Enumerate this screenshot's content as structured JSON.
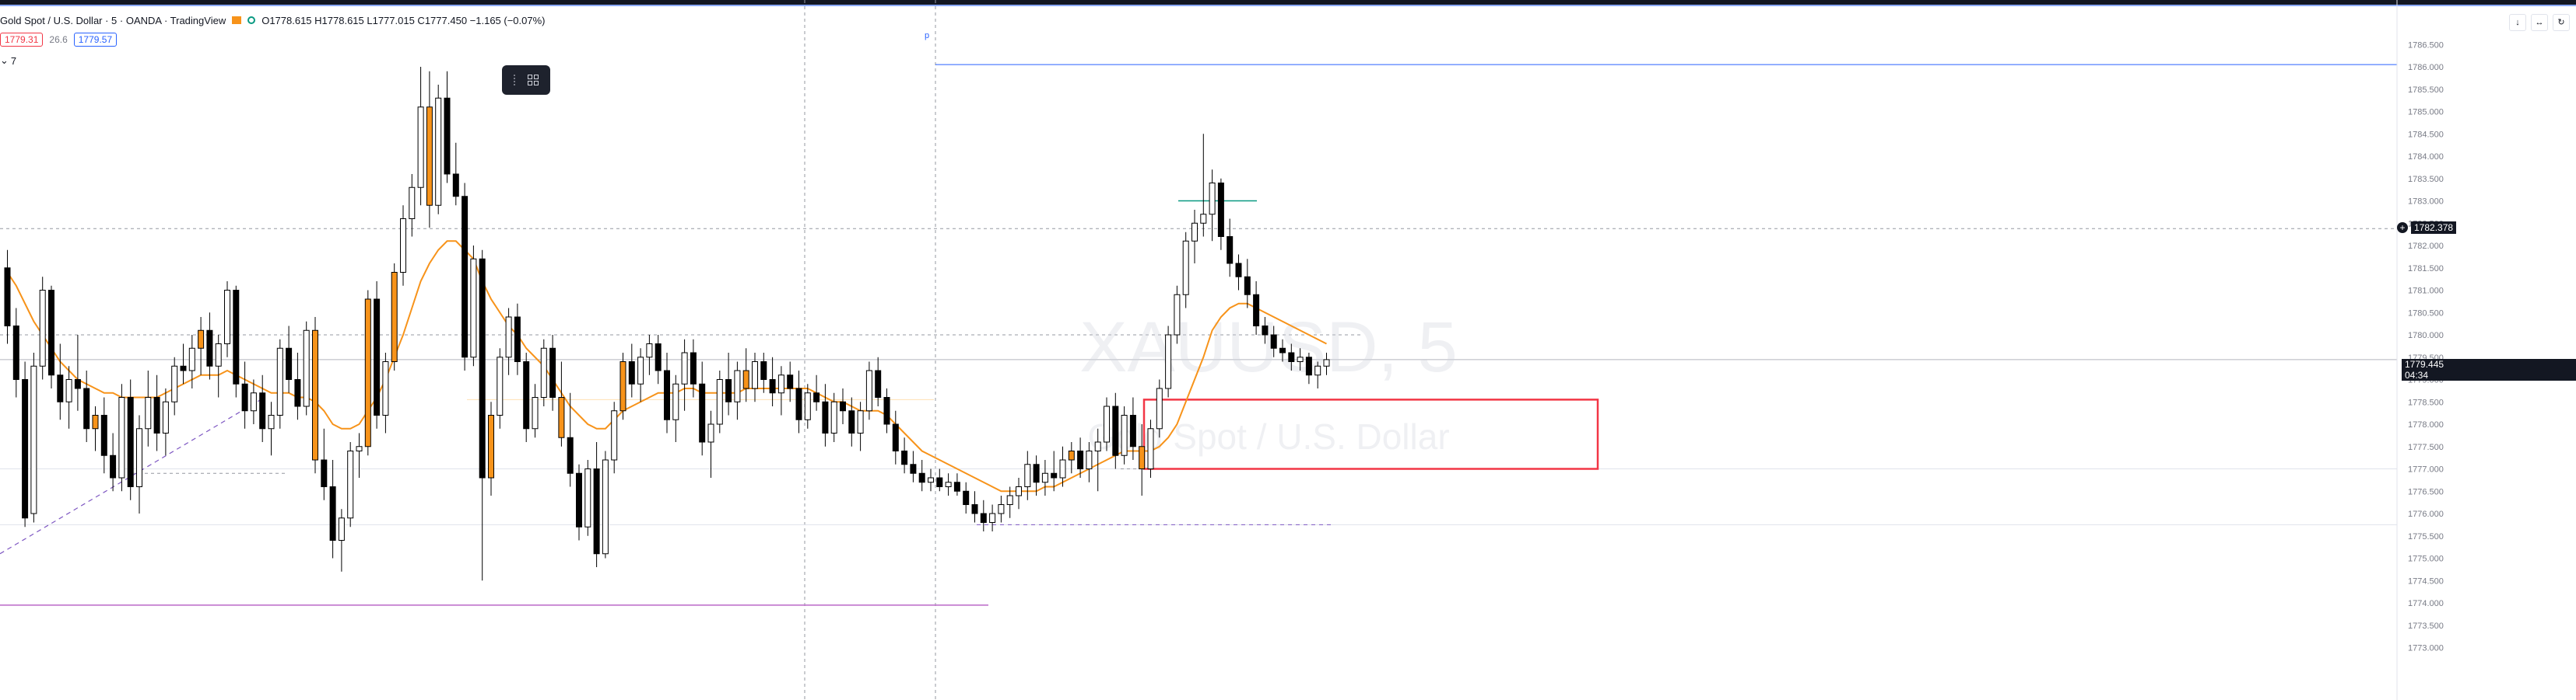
{
  "header": {
    "symbol": "Gold Spot / U.S. Dollar · 5 · OANDA · TradingView",
    "ohlc": "O1778.615 H1778.615 L1777.015 C1777.450 −1.165 (−0.07%)",
    "sell_price": "1779.31",
    "spread": "26.6",
    "buy_price": "1779.57",
    "indicator_toggle": "7"
  },
  "watermark": {
    "ticker": "XAUUSD, 5",
    "name": "Gold Spot / U.S. Dollar"
  },
  "price_axis": {
    "ticks": [
      "1786.500",
      "1786.000",
      "1785.500",
      "1785.000",
      "1784.500",
      "1784.000",
      "1783.500",
      "1783.000",
      "1782.500",
      "1782.000",
      "1781.500",
      "1781.000",
      "1780.500",
      "1780.000",
      "1779.500",
      "1779.000",
      "1778.500",
      "1778.000",
      "1777.500",
      "1777.000",
      "1776.500",
      "1776.000",
      "1775.500",
      "1775.000",
      "1774.500",
      "1774.000",
      "1773.500",
      "1773.000"
    ],
    "line_price_label": "1782.378",
    "current_price_label": "1779.445",
    "countdown_label": "04:34"
  },
  "toolbar_icons": [
    "download-icon",
    "resize-icon",
    "refresh-icon"
  ],
  "colors": {
    "up": "#ffffff",
    "down": "#000000",
    "ma": "#f7931a",
    "candle_stroke": "#000000",
    "highlight_candle": "#f7931a",
    "zone": "#f23645",
    "guide_line": "#2962ff",
    "purple_line": "#ba68c8",
    "green_line": "#089981"
  },
  "chart_data": {
    "type": "candlestick",
    "title": "Gold Spot / U.S. Dollar · 5 · OANDA · TradingView",
    "timeframe": "5",
    "ylim": [
      1772.8,
      1786.8
    ],
    "last_close": 1779.445,
    "levels": {
      "horizontal_line": 1782.378,
      "upper_guide": 1786.05,
      "purple_line": 1773.95,
      "green_tick": 1783.0
    },
    "zone": {
      "top": 1778.55,
      "bottom": 1777.0
    },
    "candles": [
      [
        1781.5,
        1781.9,
        1779.8,
        1780.2
      ],
      [
        1780.2,
        1780.6,
        1778.6,
        1779.0
      ],
      [
        1779.0,
        1779.4,
        1775.7,
        1775.9
      ],
      [
        1776.0,
        1779.6,
        1775.8,
        1779.3
      ],
      [
        1779.3,
        1781.3,
        1779.0,
        1781.0
      ],
      [
        1781.0,
        1781.1,
        1778.8,
        1779.1
      ],
      [
        1779.1,
        1779.8,
        1778.1,
        1778.5
      ],
      [
        1778.5,
        1779.3,
        1777.9,
        1779.0
      ],
      [
        1779.0,
        1780.0,
        1778.3,
        1778.8
      ],
      [
        1778.8,
        1779.2,
        1777.6,
        1777.9
      ],
      [
        1777.9,
        1778.4,
        1777.4,
        1778.2
      ],
      [
        1778.2,
        1778.6,
        1776.9,
        1777.3
      ],
      [
        1777.3,
        1777.8,
        1776.5,
        1776.8
      ],
      [
        1776.8,
        1778.9,
        1776.5,
        1778.6
      ],
      [
        1778.6,
        1779.0,
        1776.3,
        1776.6
      ],
      [
        1776.6,
        1778.2,
        1776.0,
        1777.9
      ],
      [
        1777.9,
        1779.2,
        1777.5,
        1778.6
      ],
      [
        1778.6,
        1779.1,
        1777.4,
        1777.8
      ],
      [
        1777.8,
        1778.8,
        1777.3,
        1778.5
      ],
      [
        1778.5,
        1779.5,
        1778.2,
        1779.3
      ],
      [
        1779.3,
        1779.8,
        1778.9,
        1779.2
      ],
      [
        1779.2,
        1780.0,
        1778.8,
        1779.7
      ],
      [
        1779.7,
        1780.4,
        1779.1,
        1780.1
      ],
      [
        1780.1,
        1780.5,
        1779.0,
        1779.3
      ],
      [
        1779.3,
        1780.0,
        1778.6,
        1779.8
      ],
      [
        1779.8,
        1781.2,
        1779.5,
        1781.0
      ],
      [
        1781.0,
        1781.1,
        1778.6,
        1778.9
      ],
      [
        1778.9,
        1779.4,
        1777.9,
        1778.3
      ],
      [
        1778.3,
        1779.0,
        1778.0,
        1778.7
      ],
      [
        1778.7,
        1779.1,
        1777.6,
        1777.9
      ],
      [
        1777.9,
        1778.5,
        1777.3,
        1778.2
      ],
      [
        1778.2,
        1779.9,
        1777.9,
        1779.7
      ],
      [
        1779.7,
        1780.2,
        1778.7,
        1779.0
      ],
      [
        1779.0,
        1779.6,
        1778.1,
        1778.4
      ],
      [
        1778.4,
        1780.3,
        1778.2,
        1780.1
      ],
      [
        1780.1,
        1780.4,
        1776.9,
        1777.2
      ],
      [
        1777.2,
        1777.9,
        1776.3,
        1776.6
      ],
      [
        1776.6,
        1777.2,
        1775.0,
        1775.4
      ],
      [
        1775.4,
        1776.1,
        1774.7,
        1775.9
      ],
      [
        1775.9,
        1777.6,
        1775.7,
        1777.4
      ],
      [
        1777.4,
        1777.8,
        1776.8,
        1777.5
      ],
      [
        1777.5,
        1781.0,
        1777.3,
        1780.8
      ],
      [
        1780.8,
        1781.2,
        1777.9,
        1778.2
      ],
      [
        1778.2,
        1779.6,
        1777.8,
        1779.4
      ],
      [
        1779.4,
        1781.6,
        1779.2,
        1781.4
      ],
      [
        1781.4,
        1782.9,
        1781.1,
        1782.6
      ],
      [
        1782.6,
        1783.6,
        1782.2,
        1783.3
      ],
      [
        1783.3,
        1786.0,
        1782.9,
        1785.1
      ],
      [
        1785.1,
        1785.9,
        1782.4,
        1782.9
      ],
      [
        1782.9,
        1785.6,
        1782.7,
        1785.3
      ],
      [
        1785.3,
        1785.9,
        1783.4,
        1783.6
      ],
      [
        1783.6,
        1784.3,
        1782.9,
        1783.1
      ],
      [
        1783.1,
        1783.4,
        1779.2,
        1779.5
      ],
      [
        1779.5,
        1782.0,
        1779.3,
        1781.7
      ],
      [
        1781.7,
        1781.9,
        1774.5,
        1776.8
      ],
      [
        1776.8,
        1778.5,
        1776.4,
        1778.2
      ],
      [
        1778.2,
        1779.7,
        1777.9,
        1779.5
      ],
      [
        1779.5,
        1780.6,
        1779.1,
        1780.4
      ],
      [
        1780.4,
        1780.7,
        1779.1,
        1779.4
      ],
      [
        1779.4,
        1779.6,
        1777.6,
        1777.9
      ],
      [
        1777.9,
        1778.9,
        1777.7,
        1778.6
      ],
      [
        1778.6,
        1779.9,
        1778.4,
        1779.7
      ],
      [
        1779.7,
        1780.0,
        1778.3,
        1778.6
      ],
      [
        1778.6,
        1779.4,
        1777.5,
        1777.7
      ],
      [
        1777.7,
        1778.7,
        1776.6,
        1776.9
      ],
      [
        1776.9,
        1777.1,
        1775.4,
        1775.7
      ],
      [
        1775.7,
        1777.2,
        1775.5,
        1777.0
      ],
      [
        1777.0,
        1777.6,
        1774.8,
        1775.1
      ],
      [
        1775.1,
        1777.4,
        1775.0,
        1777.2
      ],
      [
        1777.2,
        1778.5,
        1776.9,
        1778.3
      ],
      [
        1778.3,
        1779.6,
        1778.1,
        1779.4
      ],
      [
        1779.4,
        1779.8,
        1778.6,
        1778.9
      ],
      [
        1778.9,
        1779.7,
        1778.5,
        1779.5
      ],
      [
        1779.5,
        1780.0,
        1779.1,
        1779.8
      ],
      [
        1779.8,
        1780.0,
        1778.9,
        1779.2
      ],
      [
        1779.2,
        1779.6,
        1777.8,
        1778.1
      ],
      [
        1778.1,
        1779.1,
        1777.6,
        1778.9
      ],
      [
        1778.9,
        1779.9,
        1778.3,
        1779.6
      ],
      [
        1779.6,
        1779.9,
        1778.6,
        1778.9
      ],
      [
        1778.9,
        1779.4,
        1777.3,
        1777.6
      ],
      [
        1777.6,
        1778.3,
        1776.8,
        1778.0
      ],
      [
        1778.0,
        1779.2,
        1777.8,
        1779.0
      ],
      [
        1779.0,
        1779.6,
        1778.2,
        1778.5
      ],
      [
        1778.5,
        1779.4,
        1778.1,
        1779.2
      ],
      [
        1779.2,
        1779.7,
        1778.5,
        1778.8
      ],
      [
        1778.8,
        1779.6,
        1778.5,
        1779.4
      ],
      [
        1779.4,
        1779.6,
        1778.7,
        1779.0
      ],
      [
        1779.0,
        1779.5,
        1778.4,
        1778.7
      ],
      [
        1778.7,
        1779.3,
        1778.2,
        1779.1
      ],
      [
        1779.1,
        1779.4,
        1778.5,
        1778.8
      ],
      [
        1778.8,
        1779.2,
        1777.8,
        1778.1
      ],
      [
        1778.1,
        1778.9,
        1777.9,
        1778.7
      ],
      [
        1778.7,
        1779.1,
        1778.3,
        1778.5
      ],
      [
        1778.5,
        1778.9,
        1777.5,
        1777.8
      ],
      [
        1777.8,
        1778.7,
        1777.6,
        1778.5
      ],
      [
        1778.5,
        1778.8,
        1778.0,
        1778.3
      ],
      [
        1778.3,
        1778.6,
        1777.5,
        1777.8
      ],
      [
        1777.8,
        1778.5,
        1777.4,
        1778.3
      ],
      [
        1778.3,
        1779.4,
        1778.1,
        1779.2
      ],
      [
        1779.2,
        1779.5,
        1778.4,
        1778.6
      ],
      [
        1778.6,
        1778.8,
        1777.8,
        1778.0
      ],
      [
        1778.0,
        1778.3,
        1777.1,
        1777.4
      ],
      [
        1777.4,
        1777.7,
        1776.9,
        1777.1
      ],
      [
        1777.1,
        1777.4,
        1776.7,
        1776.9
      ],
      [
        1776.9,
        1777.2,
        1776.5,
        1776.7
      ],
      [
        1776.7,
        1777.0,
        1776.5,
        1776.8
      ],
      [
        1776.8,
        1777.0,
        1776.5,
        1776.6
      ],
      [
        1776.6,
        1776.9,
        1776.4,
        1776.7
      ],
      [
        1776.7,
        1776.9,
        1776.4,
        1776.5
      ],
      [
        1776.5,
        1776.7,
        1776.0,
        1776.2
      ],
      [
        1776.2,
        1776.5,
        1775.8,
        1776.0
      ],
      [
        1776.0,
        1776.3,
        1775.6,
        1775.8
      ],
      [
        1775.8,
        1776.2,
        1775.6,
        1776.0
      ],
      [
        1776.0,
        1776.4,
        1775.8,
        1776.2
      ],
      [
        1776.2,
        1776.6,
        1775.9,
        1776.4
      ],
      [
        1776.4,
        1776.8,
        1776.1,
        1776.6
      ],
      [
        1776.6,
        1777.4,
        1776.3,
        1777.1
      ],
      [
        1777.1,
        1777.3,
        1776.4,
        1776.7
      ],
      [
        1776.7,
        1777.2,
        1776.4,
        1776.9
      ],
      [
        1776.9,
        1777.4,
        1776.5,
        1776.8
      ],
      [
        1776.8,
        1777.5,
        1776.6,
        1777.2
      ],
      [
        1777.2,
        1777.6,
        1776.9,
        1777.4
      ],
      [
        1777.4,
        1777.7,
        1776.8,
        1777.0
      ],
      [
        1777.0,
        1777.6,
        1776.7,
        1777.4
      ],
      [
        1777.4,
        1777.9,
        1776.5,
        1777.6
      ],
      [
        1777.6,
        1778.6,
        1777.4,
        1778.4
      ],
      [
        1778.4,
        1778.7,
        1777.0,
        1777.3
      ],
      [
        1777.3,
        1778.4,
        1777.1,
        1778.2
      ],
      [
        1778.2,
        1778.6,
        1777.2,
        1777.5
      ],
      [
        1777.5,
        1778.0,
        1776.4,
        1777.0
      ],
      [
        1777.0,
        1778.1,
        1776.8,
        1777.9
      ],
      [
        1777.9,
        1779.0,
        1777.7,
        1778.8
      ],
      [
        1778.8,
        1780.2,
        1778.6,
        1780.0
      ],
      [
        1780.0,
        1781.1,
        1779.8,
        1780.9
      ],
      [
        1780.9,
        1782.3,
        1780.6,
        1782.1
      ],
      [
        1782.1,
        1782.8,
        1781.6,
        1782.5
      ],
      [
        1782.5,
        1784.5,
        1782.2,
        1782.7
      ],
      [
        1782.7,
        1783.7,
        1782.1,
        1783.4
      ],
      [
        1783.4,
        1783.5,
        1781.9,
        1782.2
      ],
      [
        1782.2,
        1782.6,
        1781.3,
        1781.6
      ],
      [
        1781.6,
        1781.8,
        1781.0,
        1781.3
      ],
      [
        1781.3,
        1781.7,
        1780.6,
        1780.9
      ],
      [
        1780.9,
        1781.2,
        1780.0,
        1780.2
      ],
      [
        1780.2,
        1780.4,
        1779.8,
        1780.0
      ],
      [
        1780.0,
        1780.2,
        1779.5,
        1779.7
      ],
      [
        1779.7,
        1779.9,
        1779.4,
        1779.6
      ],
      [
        1779.6,
        1779.8,
        1779.2,
        1779.4
      ],
      [
        1779.4,
        1779.7,
        1779.2,
        1779.5
      ],
      [
        1779.5,
        1779.6,
        1778.9,
        1779.1
      ],
      [
        1779.1,
        1779.4,
        1778.8,
        1779.3
      ],
      [
        1779.3,
        1779.6,
        1779.1,
        1779.445
      ]
    ],
    "ma_overlay": [
      1781.4,
      1781.1,
      1780.7,
      1780.3,
      1780.0,
      1779.7,
      1779.4,
      1779.2,
      1779.0,
      1778.9,
      1778.8,
      1778.7,
      1778.7,
      1778.6,
      1778.6,
      1778.6,
      1778.6,
      1778.6,
      1778.7,
      1778.8,
      1778.9,
      1779.0,
      1779.1,
      1779.1,
      1779.1,
      1779.2,
      1779.1,
      1779.0,
      1778.9,
      1778.8,
      1778.7,
      1778.7,
      1778.7,
      1778.6,
      1778.6,
      1778.5,
      1778.3,
      1778.0,
      1777.9,
      1777.9,
      1778.0,
      1778.3,
      1778.6,
      1779.0,
      1779.5,
      1780.0,
      1780.6,
      1781.2,
      1781.6,
      1781.9,
      1782.1,
      1782.1,
      1781.9,
      1781.7,
      1781.2,
      1780.8,
      1780.5,
      1780.2,
      1780.0,
      1779.7,
      1779.5,
      1779.3,
      1779.0,
      1778.7,
      1778.4,
      1778.2,
      1778.0,
      1777.9,
      1777.9,
      1778.1,
      1778.3,
      1778.4,
      1778.5,
      1778.6,
      1778.7,
      1778.7,
      1778.7,
      1778.8,
      1778.8,
      1778.7,
      1778.7,
      1778.7,
      1778.7,
      1778.7,
      1778.8,
      1778.8,
      1778.8,
      1778.8,
      1778.8,
      1778.8,
      1778.8,
      1778.8,
      1778.7,
      1778.6,
      1778.5,
      1778.5,
      1778.4,
      1778.3,
      1778.3,
      1778.3,
      1778.2,
      1778.0,
      1777.8,
      1777.6,
      1777.4,
      1777.3,
      1777.2,
      1777.1,
      1777.0,
      1776.9,
      1776.8,
      1776.7,
      1776.6,
      1776.5,
      1776.5,
      1776.5,
      1776.5,
      1776.5,
      1776.6,
      1776.6,
      1776.7,
      1776.8,
      1776.9,
      1777.0,
      1777.1,
      1777.2,
      1777.3,
      1777.4,
      1777.4,
      1777.4,
      1777.4,
      1777.5,
      1777.7,
      1778.0,
      1778.5,
      1779.0,
      1779.5,
      1780.1,
      1780.4,
      1780.6,
      1780.7,
      1780.7,
      1780.6,
      1780.5,
      1780.4,
      1780.3,
      1780.2,
      1780.1,
      1780.0,
      1779.9,
      1779.8
    ]
  }
}
